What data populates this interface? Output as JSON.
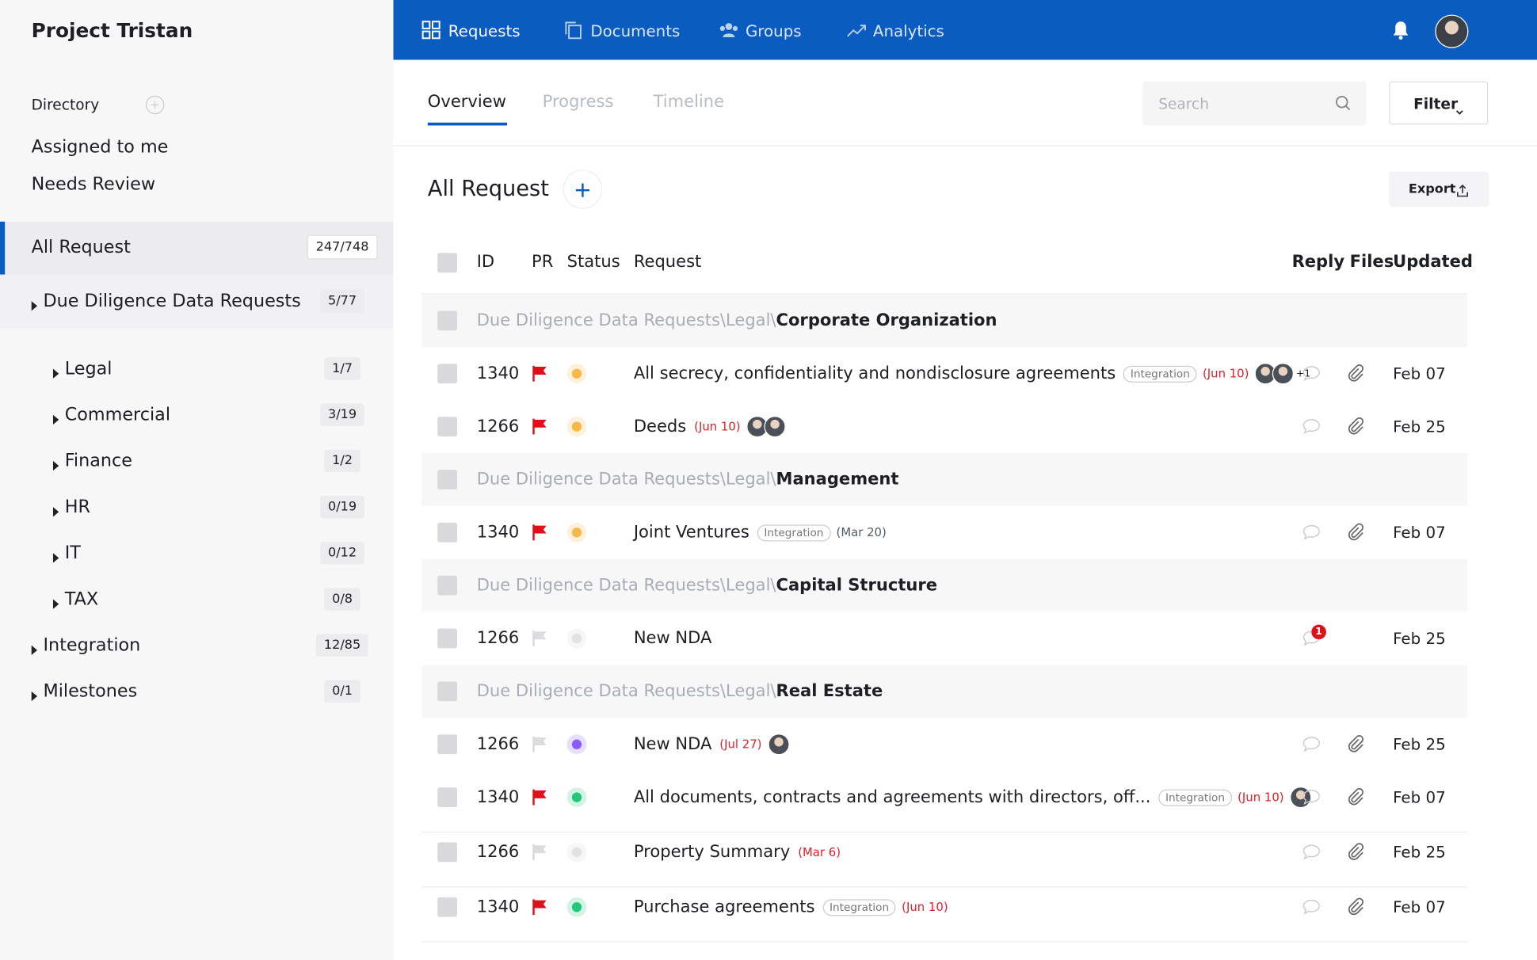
{
  "sidebar": {
    "project": "Project Tristan",
    "directory": "Directory",
    "links": [
      "Assigned to me",
      "Needs Review"
    ],
    "tree": [
      {
        "label": "All Request",
        "count": "247/748"
      },
      {
        "label": "Due Diligence Data Requests",
        "count": "5/77",
        "children": [
          {
            "label": "Legal",
            "count": "1/7"
          },
          {
            "label": "Commercial",
            "count": "3/19"
          },
          {
            "label": "Finance",
            "count": "1/2"
          },
          {
            "label": "HR",
            "count": "0/19"
          },
          {
            "label": "IT",
            "count": "0/12"
          },
          {
            "label": "TAX",
            "count": "0/8"
          }
        ]
      },
      {
        "label": "Integration",
        "count": "12/85"
      },
      {
        "label": "Milestones",
        "count": "0/1"
      }
    ]
  },
  "nav": [
    "Requests",
    "Documents",
    "Groups",
    "Analytics"
  ],
  "tabs": [
    "Overview",
    "Progress",
    "Timeline"
  ],
  "search": "Search",
  "filter": "Filter",
  "section_title": "All Request",
  "export": "Export",
  "table": {
    "columns": [
      "ID",
      "PR",
      "Status",
      "Request",
      "Reply",
      "Files",
      "Updated"
    ],
    "groups": [
      {
        "path": "Due Diligence Data Requests\\Legal\\",
        "name": "Corporate Organization",
        "rows": [
          {
            "id": "1340",
            "flag": true,
            "status": "#f7b84b",
            "title": "All secrecy, confidentiality and nondisclosure agreements",
            "tag": "Integration",
            "due": "(Jun 10)",
            "due_color": "#e0202a",
            "avatars": 2,
            "more": "+1",
            "files": true,
            "updated": "Feb 07"
          },
          {
            "id": "1266",
            "flag": true,
            "status": "#f7b84b",
            "title": "Deeds",
            "due": "(Jun 10)",
            "due_color": "#e0202a",
            "avatars": 2,
            "files": true,
            "updated": "Feb 25"
          }
        ]
      },
      {
        "path": "Due Diligence Data Requests\\Legal\\",
        "name": "Management",
        "rows": [
          {
            "id": "1340",
            "flag": true,
            "status": "#f7b84b",
            "title": "Joint Ventures",
            "tag": "Integration",
            "due": "(Mar 20)",
            "due_color": "#555b66",
            "avatars": 0,
            "files": true,
            "updated": "Feb 07"
          }
        ]
      },
      {
        "path": "Due Diligence Data Requests\\Legal\\",
        "name": "Capital Structure",
        "rows": [
          {
            "id": "1266",
            "flag": false,
            "status": "#e2e2e4",
            "title": "New NDA",
            "avatars": 0,
            "badge": "1",
            "files": false,
            "updated": "Feb 25"
          }
        ]
      },
      {
        "path": "Due Diligence Data Requests\\Legal\\",
        "name": "Real Estate",
        "rows": [
          {
            "id": "1266",
            "flag": false,
            "status": "#8b5cf6",
            "title": "New NDA",
            "due": "(Jul 27)",
            "due_color": "#e0202a",
            "avatars": 1,
            "files": true,
            "updated": "Feb 25"
          },
          {
            "id": "1340",
            "flag": true,
            "status": "#22c77a",
            "title": "All documents, contracts and agreements with directors, off...",
            "tag": "Integration",
            "due": "(Jun 10)",
            "due_color": "#e0202a",
            "avatars": 1,
            "files": true,
            "updated": "Feb 07"
          },
          {
            "id": "1266",
            "flag": false,
            "status": "#e2e2e4",
            "title": "Property Summary",
            "due": "(Mar 6)",
            "due_color": "#e0202a",
            "avatars": 0,
            "files": true,
            "updated": "Feb 25"
          },
          {
            "id": "1340",
            "flag": true,
            "status": "#22c77a",
            "title": "Purchase agreements",
            "tag": "Integration",
            "due": "(Jun 10)",
            "due_color": "#e0202a",
            "avatars": 0,
            "files": true,
            "updated": "Feb 07"
          }
        ]
      }
    ]
  }
}
